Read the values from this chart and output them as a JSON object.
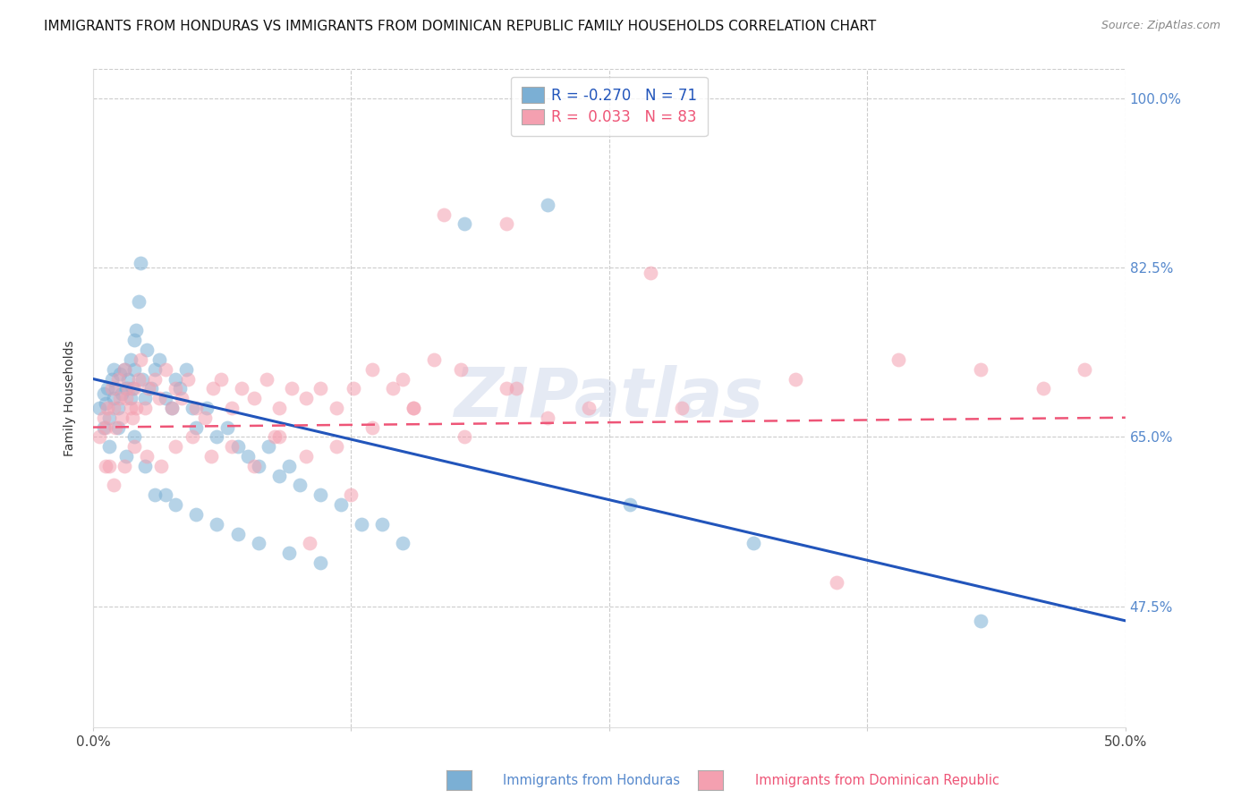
{
  "title": "IMMIGRANTS FROM HONDURAS VS IMMIGRANTS FROM DOMINICAN REPUBLIC FAMILY HOUSEHOLDS CORRELATION CHART",
  "source": "Source: ZipAtlas.com",
  "xlabel_honduras": "Immigrants from Honduras",
  "xlabel_dr": "Immigrants from Dominican Republic",
  "ylabel": "Family Households",
  "x_min": 0.0,
  "x_max": 0.5,
  "y_min": 0.35,
  "y_max": 1.03,
  "y_ticks": [
    0.475,
    0.65,
    0.825,
    1.0
  ],
  "y_tick_labels": [
    "47.5%",
    "65.0%",
    "82.5%",
    "100.0%"
  ],
  "x_tick_labels": [
    "0.0%",
    "50.0%"
  ],
  "R_honduras": -0.27,
  "N_honduras": 71,
  "R_dr": 0.033,
  "N_dr": 83,
  "color_honduras": "#7BAFD4",
  "color_dr": "#F4A0B0",
  "line_color_honduras": "#2255BB",
  "line_color_dr": "#EE5577",
  "background_color": "#FFFFFF",
  "grid_color": "#CCCCCC",
  "watermark": "ZIPatlas",
  "watermark_color": "#AABBDD",
  "title_fontsize": 11,
  "axis_label_fontsize": 10,
  "tick_fontsize": 11,
  "legend_fontsize": 12,
  "honduras_x": [
    0.003,
    0.005,
    0.006,
    0.007,
    0.008,
    0.009,
    0.01,
    0.01,
    0.011,
    0.012,
    0.013,
    0.014,
    0.015,
    0.016,
    0.017,
    0.018,
    0.018,
    0.019,
    0.02,
    0.02,
    0.021,
    0.022,
    0.023,
    0.024,
    0.025,
    0.026,
    0.028,
    0.03,
    0.032,
    0.035,
    0.038,
    0.04,
    0.042,
    0.045,
    0.048,
    0.05,
    0.055,
    0.06,
    0.065,
    0.07,
    0.075,
    0.08,
    0.085,
    0.09,
    0.095,
    0.1,
    0.11,
    0.12,
    0.13,
    0.14,
    0.005,
    0.008,
    0.012,
    0.016,
    0.02,
    0.025,
    0.03,
    0.035,
    0.04,
    0.05,
    0.06,
    0.07,
    0.08,
    0.095,
    0.11,
    0.15,
    0.18,
    0.22,
    0.26,
    0.32,
    0.43
  ],
  "honduras_y": [
    0.68,
    0.695,
    0.685,
    0.7,
    0.67,
    0.71,
    0.69,
    0.72,
    0.7,
    0.68,
    0.715,
    0.695,
    0.72,
    0.7,
    0.71,
    0.69,
    0.73,
    0.7,
    0.72,
    0.75,
    0.76,
    0.79,
    0.83,
    0.71,
    0.69,
    0.74,
    0.7,
    0.72,
    0.73,
    0.69,
    0.68,
    0.71,
    0.7,
    0.72,
    0.68,
    0.66,
    0.68,
    0.65,
    0.66,
    0.64,
    0.63,
    0.62,
    0.64,
    0.61,
    0.62,
    0.6,
    0.59,
    0.58,
    0.56,
    0.56,
    0.66,
    0.64,
    0.66,
    0.63,
    0.65,
    0.62,
    0.59,
    0.59,
    0.58,
    0.57,
    0.56,
    0.55,
    0.54,
    0.53,
    0.52,
    0.54,
    0.87,
    0.89,
    0.58,
    0.54,
    0.46
  ],
  "dr_x": [
    0.003,
    0.005,
    0.006,
    0.007,
    0.008,
    0.009,
    0.01,
    0.011,
    0.012,
    0.013,
    0.014,
    0.015,
    0.016,
    0.017,
    0.018,
    0.019,
    0.02,
    0.021,
    0.022,
    0.023,
    0.025,
    0.027,
    0.03,
    0.032,
    0.035,
    0.038,
    0.04,
    0.043,
    0.046,
    0.05,
    0.054,
    0.058,
    0.062,
    0.067,
    0.072,
    0.078,
    0.084,
    0.09,
    0.096,
    0.103,
    0.11,
    0.118,
    0.126,
    0.135,
    0.145,
    0.155,
    0.165,
    0.18,
    0.2,
    0.22,
    0.006,
    0.01,
    0.015,
    0.02,
    0.026,
    0.033,
    0.04,
    0.048,
    0.057,
    0.067,
    0.078,
    0.09,
    0.103,
    0.118,
    0.135,
    0.155,
    0.178,
    0.205,
    0.24,
    0.285,
    0.34,
    0.39,
    0.43,
    0.46,
    0.48,
    0.36,
    0.27,
    0.2,
    0.17,
    0.15,
    0.125,
    0.105,
    0.088
  ],
  "dr_y": [
    0.65,
    0.67,
    0.66,
    0.68,
    0.62,
    0.7,
    0.68,
    0.66,
    0.71,
    0.69,
    0.67,
    0.72,
    0.69,
    0.7,
    0.68,
    0.67,
    0.7,
    0.68,
    0.71,
    0.73,
    0.68,
    0.7,
    0.71,
    0.69,
    0.72,
    0.68,
    0.7,
    0.69,
    0.71,
    0.68,
    0.67,
    0.7,
    0.71,
    0.68,
    0.7,
    0.69,
    0.71,
    0.68,
    0.7,
    0.69,
    0.7,
    0.68,
    0.7,
    0.72,
    0.7,
    0.68,
    0.73,
    0.65,
    0.7,
    0.67,
    0.62,
    0.6,
    0.62,
    0.64,
    0.63,
    0.62,
    0.64,
    0.65,
    0.63,
    0.64,
    0.62,
    0.65,
    0.63,
    0.64,
    0.66,
    0.68,
    0.72,
    0.7,
    0.68,
    0.68,
    0.71,
    0.73,
    0.72,
    0.7,
    0.72,
    0.5,
    0.82,
    0.87,
    0.88,
    0.71,
    0.59,
    0.54,
    0.65
  ],
  "line_h_x0": 0.0,
  "line_h_x1": 0.5,
  "line_h_y0": 0.71,
  "line_h_y1": 0.46,
  "line_d_x0": 0.0,
  "line_d_x1": 0.5,
  "line_d_y0": 0.66,
  "line_d_y1": 0.67
}
